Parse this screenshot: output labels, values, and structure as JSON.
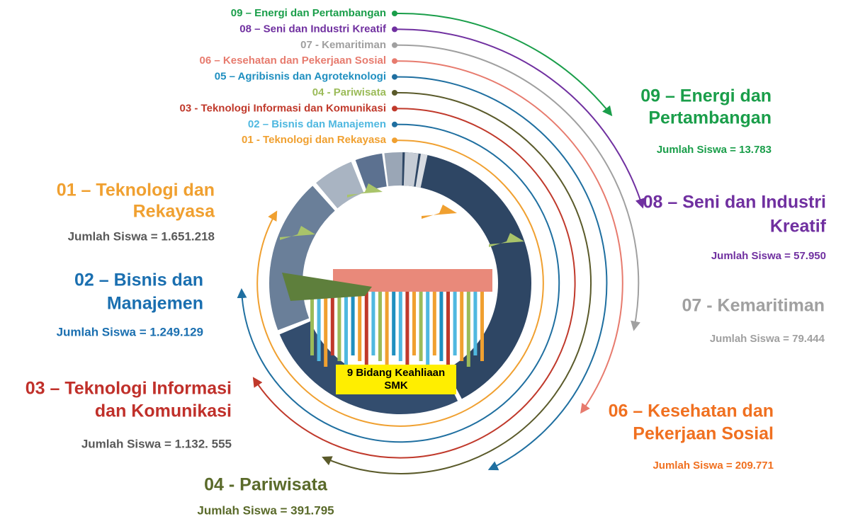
{
  "legend": [
    "09 – Energi dan Pertambangan",
    "08 – Seni dan Industri Kreatif",
    "07 - Kemaritiman",
    "06 – Kesehatan dan Pekerjaan Sosial",
    "05 – Agribisnis dan Agroteknologi",
    "04 - Pariwisata",
    "03 -  Teknologi Informasi dan Komunikasi",
    "02 – Bisnis dan Manajemen",
    "01 - Teknologi dan Rekayasa"
  ],
  "sections": [
    {
      "title": [
        "01 – Teknologi dan",
        "Rekayasa"
      ],
      "count": "Jumlah Siswa = 1.651.218"
    },
    {
      "title": [
        "02 – Bisnis dan",
        "Manajemen"
      ],
      "count": "Jumlah Siswa = 1.249.129"
    },
    {
      "title": [
        "03 – Teknologi Informasi",
        "dan Komunikasi"
      ],
      "count": "Jumlah Siswa = 1.132. 555"
    },
    {
      "title": [
        "04 - Pariwisata"
      ],
      "count": "Jumlah Siswa = 391.795"
    },
    {
      "title": [
        "06 – Kesehatan dan",
        "Pekerjaan Sosial"
      ],
      "count": "Jumlah Siswa = 209.771"
    },
    {
      "title": [
        "07 - Kemaritiman"
      ],
      "count": "Jumlah Siswa = 79.444"
    },
    {
      "title": [
        "08 – Seni dan Industri",
        "Kreatif"
      ],
      "count": "Jumlah Siswa = 57.950"
    },
    {
      "title": [
        "09 – Energi dan",
        "Pertambangan"
      ],
      "count": "Jumlah Siswa = 13.783"
    }
  ],
  "center_label": [
    "9 Bidang Keahliaan",
    "SMK"
  ]
}
